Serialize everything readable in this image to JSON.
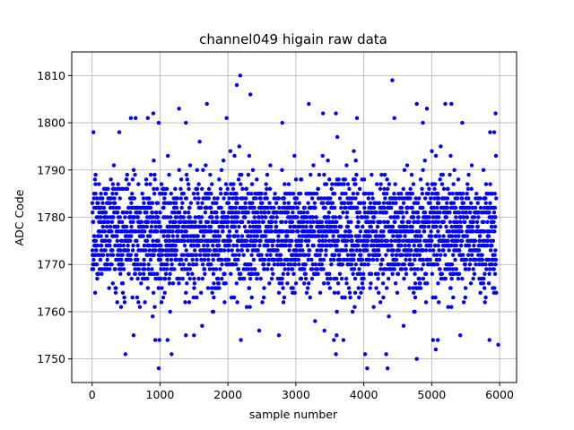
{
  "chart_data": {
    "type": "scatter",
    "title": "channel049 higain raw data",
    "xlabel": "sample number",
    "ylabel": "ADC Code",
    "xlim": [
      -300,
      6250
    ],
    "ylim": [
      1745,
      1815
    ],
    "xticks": [
      0,
      1000,
      2000,
      3000,
      4000,
      5000,
      6000
    ],
    "yticks": [
      1750,
      1760,
      1770,
      1780,
      1790,
      1800,
      1810
    ],
    "grid": true,
    "marker_color": "#0000ff",
    "dense_band": {
      "x_range": [
        0,
        5950
      ],
      "y_range": [
        1765,
        1788
      ]
    },
    "outliers": [
      {
        "x": 2180,
        "y": 1810
      },
      {
        "x": 4420,
        "y": 1809
      },
      {
        "x": 2130,
        "y": 1808
      },
      {
        "x": 2330,
        "y": 1806
      },
      {
        "x": 1690,
        "y": 1804
      },
      {
        "x": 3190,
        "y": 1804
      },
      {
        "x": 4780,
        "y": 1804
      },
      {
        "x": 5200,
        "y": 1804
      },
      {
        "x": 5290,
        "y": 1804
      },
      {
        "x": 1280,
        "y": 1803
      },
      {
        "x": 4930,
        "y": 1803
      },
      {
        "x": 900,
        "y": 1802
      },
      {
        "x": 3400,
        "y": 1802
      },
      {
        "x": 3590,
        "y": 1802
      },
      {
        "x": 5940,
        "y": 1802
      },
      {
        "x": 570,
        "y": 1801
      },
      {
        "x": 640,
        "y": 1801
      },
      {
        "x": 820,
        "y": 1801
      },
      {
        "x": 1980,
        "y": 1801
      },
      {
        "x": 3900,
        "y": 1801
      },
      {
        "x": 4450,
        "y": 1801
      },
      {
        "x": 980,
        "y": 1800
      },
      {
        "x": 1380,
        "y": 1800
      },
      {
        "x": 2800,
        "y": 1800
      },
      {
        "x": 4870,
        "y": 1800
      },
      {
        "x": 5450,
        "y": 1800
      },
      {
        "x": 20,
        "y": 1798
      },
      {
        "x": 400,
        "y": 1798
      },
      {
        "x": 5860,
        "y": 1798
      },
      {
        "x": 5920,
        "y": 1798
      },
      {
        "x": 980,
        "y": 1748
      },
      {
        "x": 4050,
        "y": 1748
      },
      {
        "x": 4350,
        "y": 1748
      },
      {
        "x": 4780,
        "y": 1750
      },
      {
        "x": 490,
        "y": 1751
      },
      {
        "x": 1170,
        "y": 1751
      },
      {
        "x": 3590,
        "y": 1751
      },
      {
        "x": 4020,
        "y": 1751
      },
      {
        "x": 4330,
        "y": 1751
      },
      {
        "x": 5980,
        "y": 1753
      },
      {
        "x": 5850,
        "y": 1754
      },
      {
        "x": 930,
        "y": 1754
      },
      {
        "x": 990,
        "y": 1754
      },
      {
        "x": 1110,
        "y": 1754
      },
      {
        "x": 2190,
        "y": 1754
      },
      {
        "x": 3560,
        "y": 1754
      },
      {
        "x": 3700,
        "y": 1754
      },
      {
        "x": 5020,
        "y": 1754
      },
      {
        "x": 5090,
        "y": 1754
      },
      {
        "x": 5420,
        "y": 1755
      },
      {
        "x": 2460,
        "y": 1756
      },
      {
        "x": 3420,
        "y": 1756
      },
      {
        "x": 2750,
        "y": 1755
      },
      {
        "x": 3600,
        "y": 1755
      },
      {
        "x": 1380,
        "y": 1755
      },
      {
        "x": 1500,
        "y": 1755
      },
      {
        "x": 610,
        "y": 1755
      },
      {
        "x": 5060,
        "y": 1752
      }
    ]
  }
}
